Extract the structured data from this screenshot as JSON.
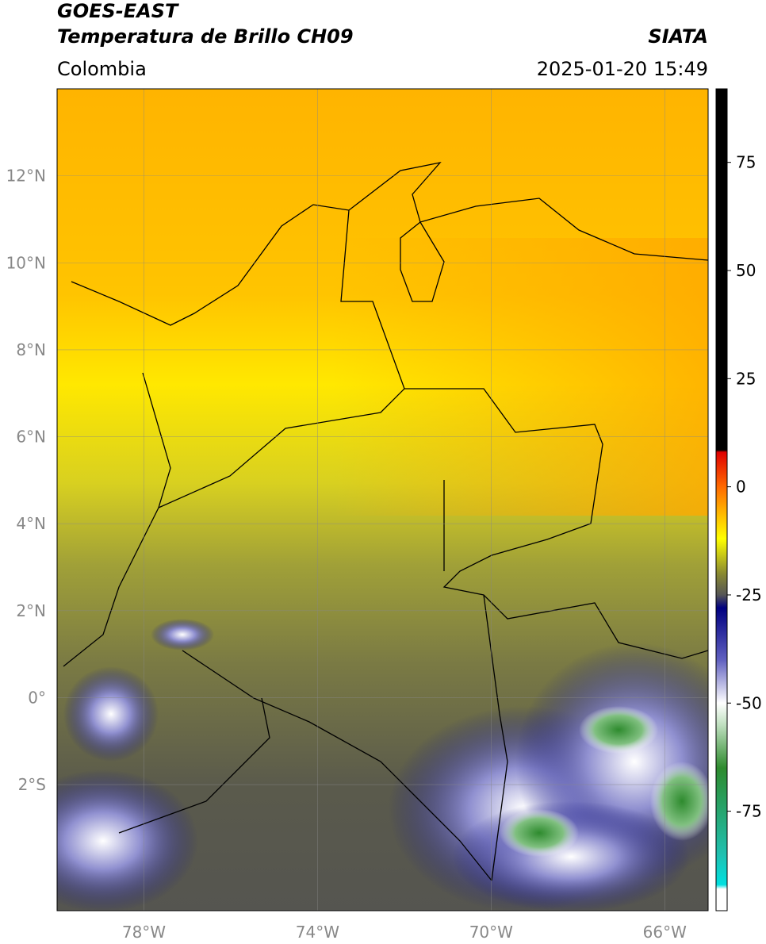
{
  "header": {
    "satellite": "GOES-EAST",
    "product": "Temperatura de Brillo CH09",
    "source": "SIATA",
    "region": "Colombia",
    "datetime": "2025-01-20 15:49"
  },
  "map": {
    "lonlim": [
      -80,
      -65
    ],
    "latlim": [
      -4.9,
      14
    ],
    "grid": true,
    "lon_ticks": [
      {
        "value": -78,
        "label": "78°W"
      },
      {
        "value": -74,
        "label": "74°W"
      },
      {
        "value": -70,
        "label": "70°W"
      },
      {
        "value": -66,
        "label": "66°W"
      }
    ],
    "lat_ticks": [
      {
        "value": 12,
        "label": "12°N"
      },
      {
        "value": 10,
        "label": "10°N"
      },
      {
        "value": 8,
        "label": "8°N"
      },
      {
        "value": 6,
        "label": "6°N"
      },
      {
        "value": 4,
        "label": "4°N"
      },
      {
        "value": 2,
        "label": "2°N"
      },
      {
        "value": 0,
        "label": "0°"
      },
      {
        "value": -2,
        "label": "2°S"
      }
    ]
  },
  "colorbar": {
    "lim": [
      -98,
      92
    ],
    "ticks": [
      75,
      50,
      25,
      0,
      -25,
      -50,
      -75
    ],
    "colormap": [
      {
        "value": 92,
        "color": "#000000"
      },
      {
        "value": 8.5,
        "color": "#000000"
      },
      {
        "value": 8,
        "color": "#e00000"
      },
      {
        "value": 0,
        "color": "#ff6a00"
      },
      {
        "value": -5,
        "color": "#ffaa00"
      },
      {
        "value": -12,
        "color": "#ffff00"
      },
      {
        "value": -20,
        "color": "#8a8a30"
      },
      {
        "value": -25,
        "color": "#555555"
      },
      {
        "value": -28,
        "color": "#000080"
      },
      {
        "value": -40,
        "color": "#6060c0"
      },
      {
        "value": -50,
        "color": "#ffffff"
      },
      {
        "value": -55,
        "color": "#c0e0c0"
      },
      {
        "value": -65,
        "color": "#2e8b2e"
      },
      {
        "value": -85,
        "color": "#20c0b0"
      },
      {
        "value": -92,
        "color": "#00e0e0"
      },
      {
        "value": -93,
        "color": "#ffffff"
      },
      {
        "value": -98,
        "color": "#ffffff"
      }
    ]
  }
}
